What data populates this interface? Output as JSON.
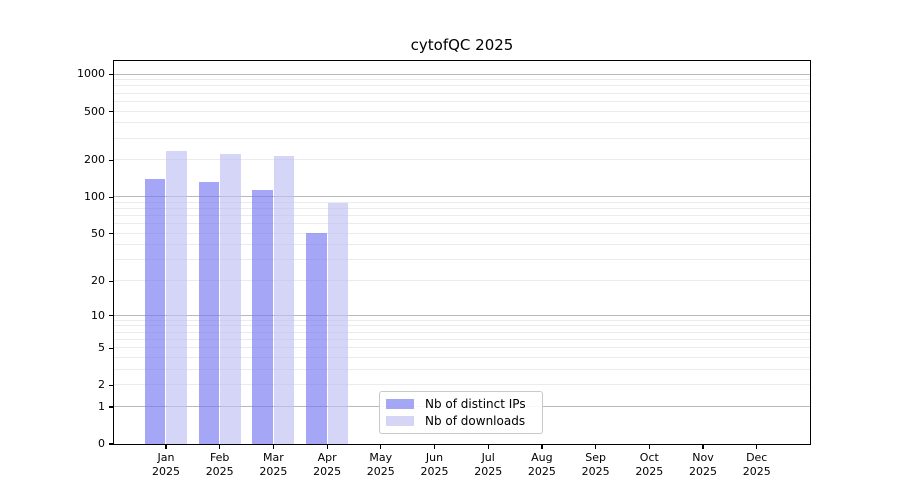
{
  "title": "cytofQC 2025",
  "chart_data": {
    "type": "bar",
    "title": "cytofQC 2025",
    "categories": [
      "Jan",
      "Feb",
      "Mar",
      "Apr",
      "May",
      "Jun",
      "Jul",
      "Aug",
      "Sep",
      "Oct",
      "Nov",
      "Dec"
    ],
    "x_year": "2025",
    "series": [
      {
        "name": "Nb of distinct IPs",
        "color": "rgba(118,118,243,0.65)",
        "values": [
          140,
          132,
          115,
          51,
          0,
          0,
          0,
          0,
          0,
          0,
          0,
          0
        ]
      },
      {
        "name": "Nb of downloads",
        "color": "rgba(190,190,242,0.65)",
        "values": [
          237,
          224,
          219,
          90,
          0,
          0,
          0,
          0,
          0,
          0,
          0,
          0
        ]
      }
    ],
    "yticks": [
      0,
      1,
      2,
      5,
      10,
      20,
      50,
      100,
      200,
      500,
      1000
    ],
    "ylim": [
      0,
      1288
    ],
    "y_scale": "log10(1+x)",
    "grid": true,
    "major_grid_values": [
      1,
      10,
      100,
      1000
    ],
    "legend_position": "bottom-center",
    "colors": {
      "major_grid": "#b9b9b9",
      "minor_grid": "#ebebeb",
      "axis": "#000000",
      "legend_border": "#c9c9c9"
    }
  }
}
